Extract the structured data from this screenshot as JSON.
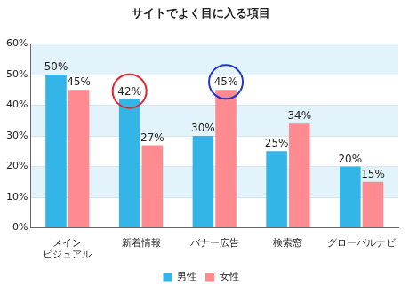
{
  "chart_data": {
    "type": "bar",
    "title": "サイトでよく目に入る項目",
    "categories": [
      "メイン\nビジュアル",
      "新着情報",
      "バナー広告",
      "検索窓",
      "グローバルナビ"
    ],
    "series": [
      {
        "name": "男性",
        "color": "#33b5e8",
        "values": [
          50,
          42,
          30,
          25,
          20
        ],
        "value_labels": [
          "50%",
          "42%",
          "30%",
          "25%",
          "20%"
        ]
      },
      {
        "name": "女性",
        "color": "#ff8a90",
        "values": [
          45,
          27,
          45,
          34,
          15
        ],
        "value_labels": [
          "45%",
          "27%",
          "45%",
          "34%",
          "15%"
        ]
      }
    ],
    "ylim": [
      0,
      60
    ],
    "yticks": [
      {
        "value": 0,
        "label": "0%"
      },
      {
        "value": 10,
        "label": "10%"
      },
      {
        "value": 20,
        "label": "20%"
      },
      {
        "value": 30,
        "label": "30%"
      },
      {
        "value": 40,
        "label": "40%"
      },
      {
        "value": 50,
        "label": "50%"
      },
      {
        "value": 60,
        "label": "60%"
      }
    ],
    "grid": true,
    "legend": "bottom",
    "data_labels": true
  }
}
